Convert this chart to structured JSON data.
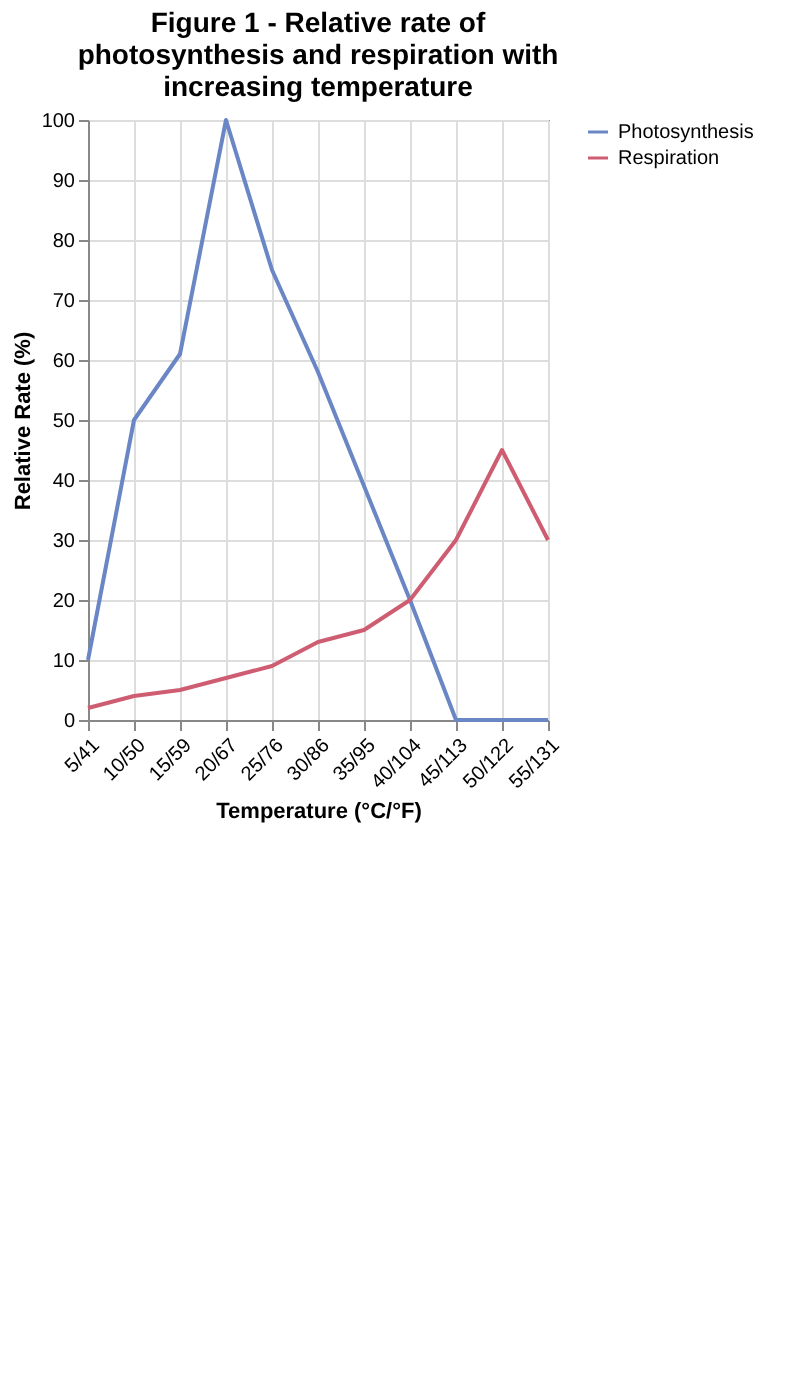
{
  "chart_data": {
    "type": "line",
    "title": "Figure 1 - Relative rate of photosynthesis and respiration with increasing temperature",
    "xlabel": "Temperature (°C/°F)",
    "ylabel": "Relative Rate (%)",
    "categories": [
      "5/41",
      "10/50",
      "15/59",
      "20/67",
      "25/76",
      "30/86",
      "35/95",
      "40/104",
      "45/113",
      "50/122",
      "55/131"
    ],
    "series": [
      {
        "name": "Photosynthesis",
        "color": "#6a86c4",
        "values": [
          10,
          50,
          61,
          100,
          75,
          58,
          39,
          20,
          0,
          0,
          0
        ]
      },
      {
        "name": "Respiration",
        "color": "#cf5d72",
        "values": [
          2,
          4,
          5,
          7,
          9,
          13,
          15,
          20,
          30,
          45,
          30
        ]
      }
    ],
    "ylim": [
      0,
      100
    ],
    "yticks": [
      0,
      10,
      20,
      30,
      40,
      50,
      60,
      70,
      80,
      90,
      100
    ],
    "grid": true,
    "legend": "right",
    "marker": "none",
    "line_style": "solid"
  }
}
